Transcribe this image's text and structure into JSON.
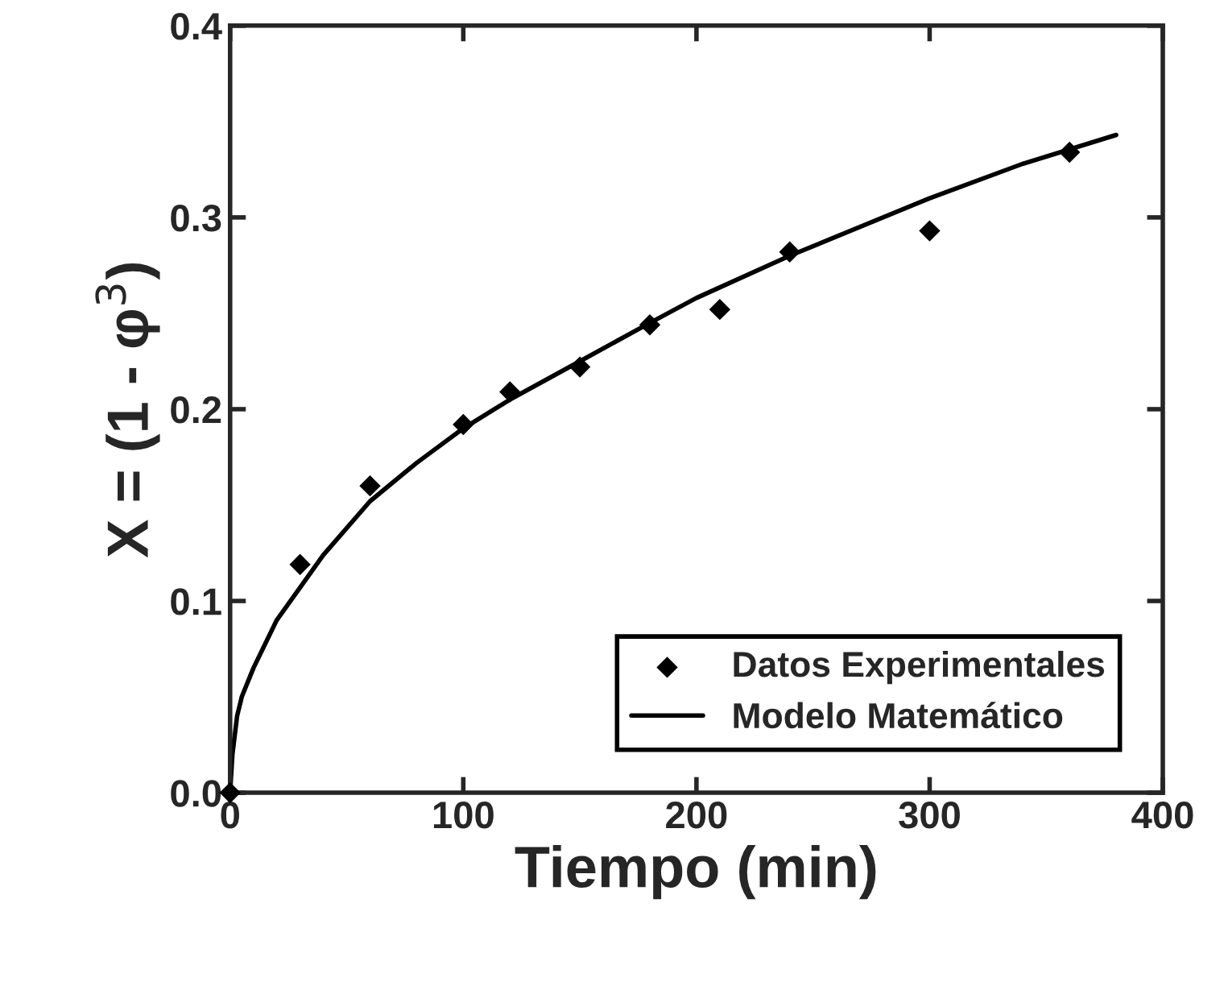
{
  "chart_data": {
    "type": "scatter",
    "xlabel": "Tiempo (min)",
    "ylabel": "X = (1 - φ$^{3}$)",
    "xlim": [
      0,
      400
    ],
    "ylim": [
      0,
      0.4
    ],
    "xticks": [
      0,
      100,
      200,
      300,
      400
    ],
    "yticks": [
      {
        "value": 0,
        "label": "0.0"
      },
      0.1,
      0.2,
      0.3,
      0.4
    ],
    "grid": false,
    "legend": "bottom right",
    "series": [
      {
        "name": "Datos Experimentales",
        "marker": "diamond",
        "color": "#000000",
        "x": [
          0,
          30,
          60,
          100,
          120,
          150,
          180,
          210,
          240,
          300,
          360
        ],
        "values": [
          0,
          0.119,
          0.16,
          0.192,
          0.209,
          0.222,
          0.244,
          0.252,
          0.282,
          0.293,
          0.334
        ]
      },
      {
        "name": "Modelo Matemático",
        "type": "line",
        "line_style": "solid",
        "color": "#000000",
        "x": [
          0,
          1,
          3,
          5,
          10,
          20,
          30,
          40,
          60,
          80,
          100,
          120,
          150,
          180,
          200,
          240,
          300,
          340,
          380
        ],
        "values": [
          0,
          0.02,
          0.04,
          0.05,
          0.065,
          0.09,
          0.107,
          0.124,
          0.152,
          0.172,
          0.19,
          0.205,
          0.225,
          0.245,
          0.258,
          0.28,
          0.31,
          0.328,
          0.343
        ]
      }
    ]
  }
}
